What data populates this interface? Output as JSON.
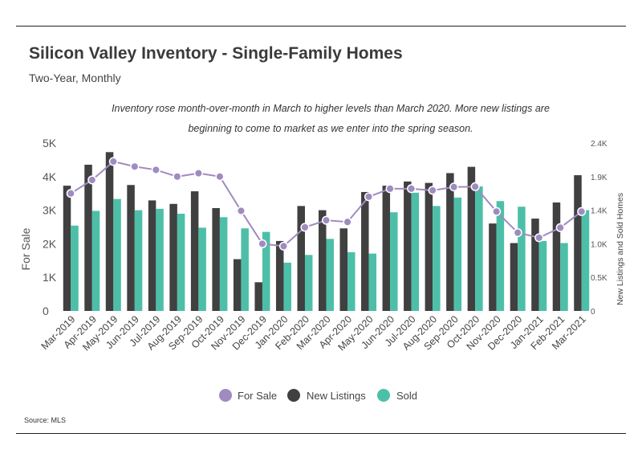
{
  "header": {
    "title": "Silicon Valley Inventory - Single-Family Homes",
    "subtitle": "Two-Year, Monthly"
  },
  "footer": {
    "source": "Source:  MLS"
  },
  "colors": {
    "for_sale": "#a08bc0",
    "new_listings": "#404040",
    "sold": "#4dbfa8"
  },
  "chart_data": {
    "type": "bar",
    "title": "Silicon Valley Inventory - Single-Family Homes",
    "subtitle": "Two-Year, Monthly",
    "annotation": [
      "Inventory rose month-over-month in March to higher levels than March 2020. More new listings are",
      "beginning to come to market as we enter into the spring season."
    ],
    "categories": [
      "Mar-2019",
      "Apr-2019",
      "May-2019",
      "Jun-2019",
      "Jul-2019",
      "Aug-2019",
      "Sep-2019",
      "Oct-2019",
      "Nov-2019",
      "Dec-2019",
      "Jan-2020",
      "Feb-2020",
      "Mar-2020",
      "Apr-2020",
      "May-2020",
      "Jun-2020",
      "Jul-2020",
      "Aug-2020",
      "Sep-2020",
      "Oct-2020",
      "Nov-2020",
      "Dec-2020",
      "Jan-2021",
      "Feb-2021",
      "Mar-2021"
    ],
    "y_left": {
      "label": "For Sale",
      "ylim": [
        0,
        5000
      ],
      "ticks": [
        0,
        1000,
        2000,
        3000,
        4000,
        5000
      ],
      "tick_labels": [
        "0",
        "1K",
        "2K",
        "3K",
        "4K",
        "5K"
      ]
    },
    "y_right": {
      "label": "New Listings and Sold Homes",
      "ylim": [
        0,
        2400
      ],
      "ticks": [
        0,
        480,
        960,
        1440,
        1920,
        2400
      ],
      "tick_labels": [
        "0",
        "0.5K",
        "1.0K",
        "1.4K",
        "1.9K",
        "2.4K"
      ]
    },
    "series": [
      {
        "name": "For Sale",
        "type": "line",
        "axis": "left",
        "values": [
          3500,
          3900,
          4450,
          4300,
          4200,
          4000,
          4100,
          4000,
          2980,
          2000,
          1930,
          2490,
          2700,
          2650,
          3400,
          3640,
          3640,
          3590,
          3690,
          3700,
          2960,
          2330,
          2180,
          2480,
          2960
        ]
      },
      {
        "name": "New Listings",
        "type": "bar",
        "axis": "right",
        "values": [
          1790,
          2090,
          2270,
          1800,
          1580,
          1530,
          1710,
          1470,
          740,
          410,
          1000,
          1500,
          1440,
          1180,
          1700,
          1790,
          1850,
          1830,
          1970,
          2060,
          1250,
          970,
          1320,
          1550,
          1940
        ]
      },
      {
        "name": "Sold",
        "type": "bar",
        "axis": "right",
        "values": [
          1220,
          1430,
          1600,
          1440,
          1460,
          1390,
          1190,
          1340,
          1180,
          1130,
          690,
          800,
          1030,
          840,
          820,
          1410,
          1690,
          1500,
          1620,
          1780,
          1570,
          1490,
          1000,
          970,
          1440
        ]
      }
    ],
    "legend": {
      "position": "bottom",
      "entries": [
        "For Sale",
        "New Listings",
        "Sold"
      ]
    },
    "grid": false
  }
}
